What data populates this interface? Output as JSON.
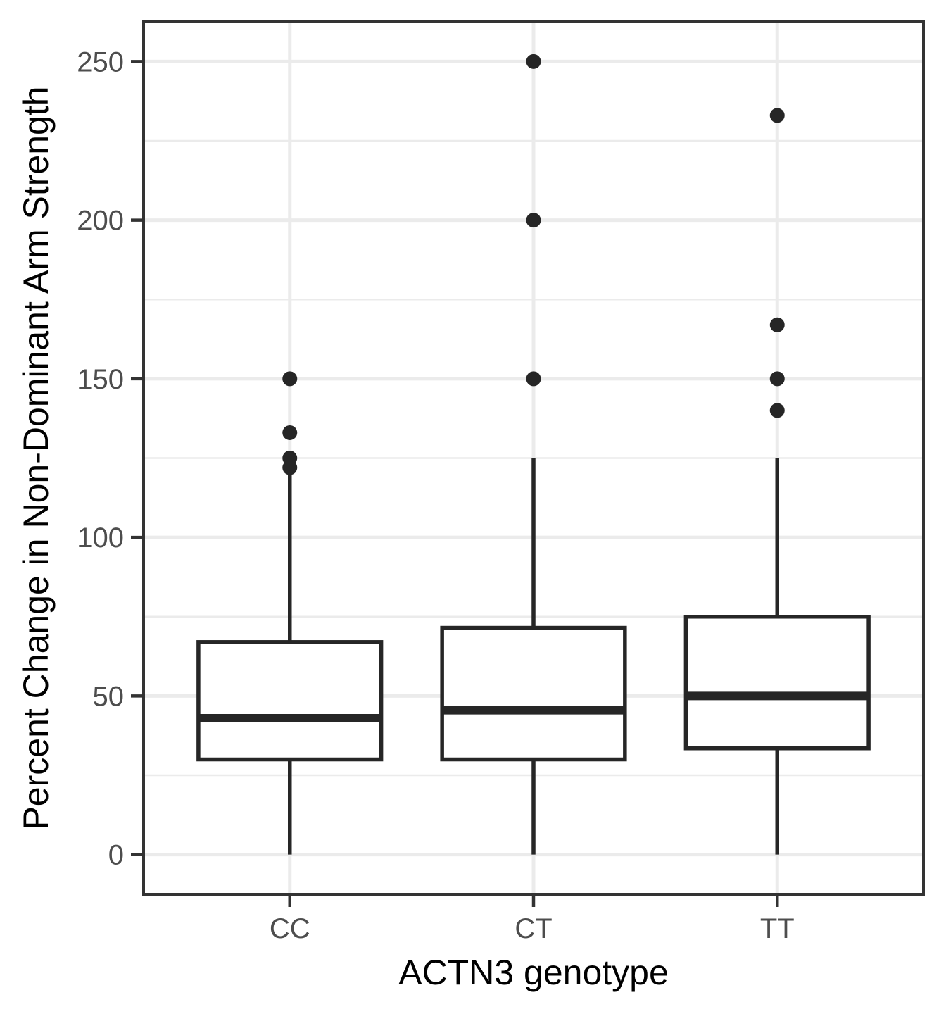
{
  "chart_data": {
    "type": "boxplot",
    "title": "",
    "xlabel": "ACTN3 genotype",
    "ylabel": "Percent Change in Non-Dominant Arm Strength",
    "categories": [
      "CC",
      "CT",
      "TT"
    ],
    "y_axis": {
      "ticks": [
        0,
        50,
        100,
        150,
        200,
        250
      ],
      "minor_ticks": [
        25,
        75,
        125,
        175,
        225
      ],
      "range": [
        -12.5,
        262.5
      ],
      "grid": true
    },
    "series": [
      {
        "category": "CC",
        "whisker_low": 0,
        "q1": 30,
        "median": 43,
        "q3": 67,
        "whisker_high": 120,
        "outliers": [
          122,
          125,
          133,
          150
        ]
      },
      {
        "category": "CT",
        "whisker_low": 0,
        "q1": 30,
        "median": 45.5,
        "q3": 71.5,
        "whisker_high": 125,
        "outliers": [
          150,
          200,
          250
        ]
      },
      {
        "category": "TT",
        "whisker_low": 0,
        "q1": 33.5,
        "median": 50,
        "q3": 75,
        "whisker_high": 125,
        "outliers": [
          140,
          150,
          167,
          233
        ]
      }
    ],
    "style": {
      "box_color": "#262626",
      "box_fill": "#ffffff",
      "grid_color": "#ebebeb",
      "panel_border_color": "#333333",
      "tick_color": "#333333",
      "tick_label_color": "#4d4d4d",
      "axis_title_color": "#000000",
      "background": "#ffffff"
    }
  }
}
